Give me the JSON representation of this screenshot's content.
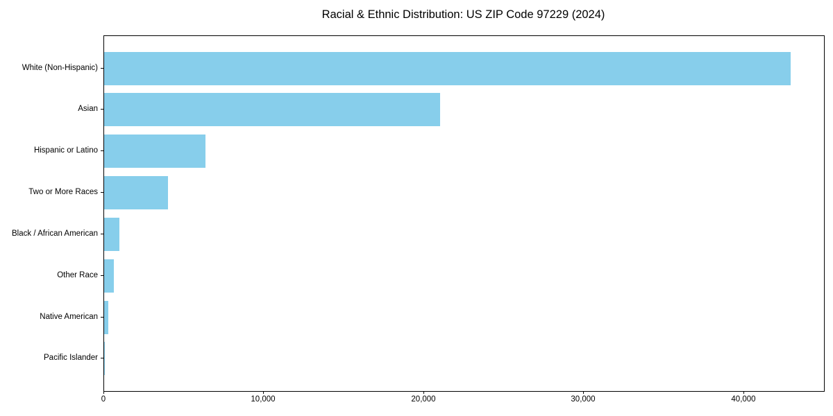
{
  "page": {
    "background_color": "#ffffff",
    "text_color": "#000000"
  },
  "chart_data": {
    "type": "bar",
    "orientation": "horizontal",
    "title": "Racial & Ethnic Distribution: US ZIP Code 97229 (2024)",
    "xlabel": "",
    "ylabel": "",
    "categories": [
      "White (Non-Hispanic)",
      "Asian",
      "Hispanic or Latino",
      "Two or More Races",
      "Black / African American",
      "Other Race",
      "Native American",
      "Pacific Islander"
    ],
    "values": [
      42900,
      21000,
      6350,
      4000,
      950,
      620,
      250,
      50
    ],
    "xlim": [
      0,
      45000
    ],
    "xticks": [
      0,
      10000,
      20000,
      30000,
      40000
    ],
    "xtick_labels": [
      "0",
      "10,000",
      "20,000",
      "30,000",
      "40,000"
    ],
    "bar_color": "#87CEEB",
    "grid": false,
    "legend": null,
    "frame": "full-box"
  }
}
